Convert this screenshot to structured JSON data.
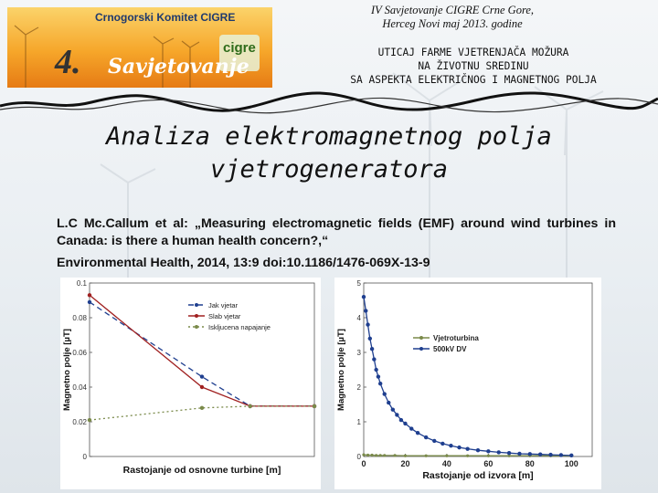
{
  "header": {
    "logo_title": "Crnogorski Komitet CIGRE",
    "logo_number": "4.",
    "logo_word": "Savjetovanje",
    "logo_brand": "cigre",
    "conference_line1": "IV Savjetovanje CIGRE Crne Gore,",
    "conference_line2": "Herceg Novi maj 2013. godine",
    "topic_line1": "UTICAJ FARME VJETRENJAČA MOŽURA",
    "topic_line2": "NA ŽIVOTNU SREDINU",
    "topic_line3": "SA ASPEKTA ELEKTRIČNOG I MAGNETNOG POLJA"
  },
  "slide": {
    "title_line1": "Analiza elektromagnetnog polja",
    "title_line2": "vjetrogeneratora",
    "reference_main": "L.C Mc.Callum et al: „Measuring electromagnetic fields (EMF) around wind turbines in Canada: is there a human health concern?,“",
    "reference_last": "Environmental Health, 2014, 13:9  doi:10.1186/1476-069X-13-9"
  },
  "colors": {
    "blue_series": "#1f3f8f",
    "red_series": "#a02020",
    "grey_series": "#7a8a4a"
  },
  "chart_data": [
    {
      "type": "line",
      "xlabel": "Rastojanje od osnovne turbine [m]",
      "ylabel": "Magnetno polje [µT]",
      "ylim": [
        0,
        0.1
      ],
      "y_ticks": [
        "0",
        "0.02",
        "0.04",
        "0.06",
        "0.08",
        "0.1"
      ],
      "x_ticks": [],
      "legend_position": "top-right",
      "series": [
        {
          "name": "Jak vjetar",
          "color": "#1f3f8f",
          "dash": "6,4",
          "x": [
            0,
            7,
            10,
            14
          ],
          "y": [
            0.089,
            0.046,
            0.029,
            0.029
          ]
        },
        {
          "name": "Slab vjetar",
          "color": "#a02020",
          "dash": "",
          "x": [
            0,
            7,
            10,
            14
          ],
          "y": [
            0.093,
            0.04,
            0.029,
            0.029
          ]
        },
        {
          "name": "Iskljucena napajanje",
          "color": "#7a8a4a",
          "dash": "2,3",
          "x": [
            0,
            7,
            10,
            14
          ],
          "y": [
            0.021,
            0.028,
            0.029,
            0.029
          ]
        }
      ]
    },
    {
      "type": "line",
      "xlabel": "Rastojanje od izvora [m]",
      "ylabel": "Magnetno polje [µT]",
      "ylim": [
        0,
        5
      ],
      "xlim": [
        0,
        110
      ],
      "y_ticks": [
        "0",
        "1",
        "2",
        "3",
        "4",
        "5"
      ],
      "x_ticks": [
        "0",
        "20",
        "40",
        "60",
        "80",
        "100"
      ],
      "legend_position": "top-right",
      "series": [
        {
          "name": "Vjetroturbina",
          "color": "#7a8a4a",
          "marker": "dot-small",
          "x": [
            0,
            2,
            4,
            6,
            8,
            10,
            15,
            20,
            30,
            40,
            50,
            60,
            70,
            80,
            90,
            100
          ],
          "y": [
            0.05,
            0.04,
            0.04,
            0.03,
            0.03,
            0.03,
            0.03,
            0.02,
            0.02,
            0.02,
            0.02,
            0.02,
            0.02,
            0.02,
            0.02,
            0.02
          ]
        },
        {
          "name": "500kV DV",
          "color": "#1f3f8f",
          "marker": "dot",
          "x": [
            0,
            1,
            2,
            3,
            4,
            5,
            6,
            7,
            8,
            10,
            12,
            14,
            16,
            18,
            20,
            23,
            26,
            30,
            34,
            38,
            42,
            46,
            50,
            55,
            60,
            65,
            70,
            75,
            80,
            85,
            90,
            95,
            100
          ],
          "y": [
            4.6,
            4.2,
            3.8,
            3.4,
            3.1,
            2.8,
            2.5,
            2.3,
            2.1,
            1.8,
            1.55,
            1.35,
            1.2,
            1.05,
            0.95,
            0.8,
            0.68,
            0.55,
            0.45,
            0.37,
            0.31,
            0.26,
            0.22,
            0.18,
            0.15,
            0.12,
            0.1,
            0.08,
            0.07,
            0.06,
            0.05,
            0.04,
            0.03
          ]
        }
      ]
    }
  ]
}
